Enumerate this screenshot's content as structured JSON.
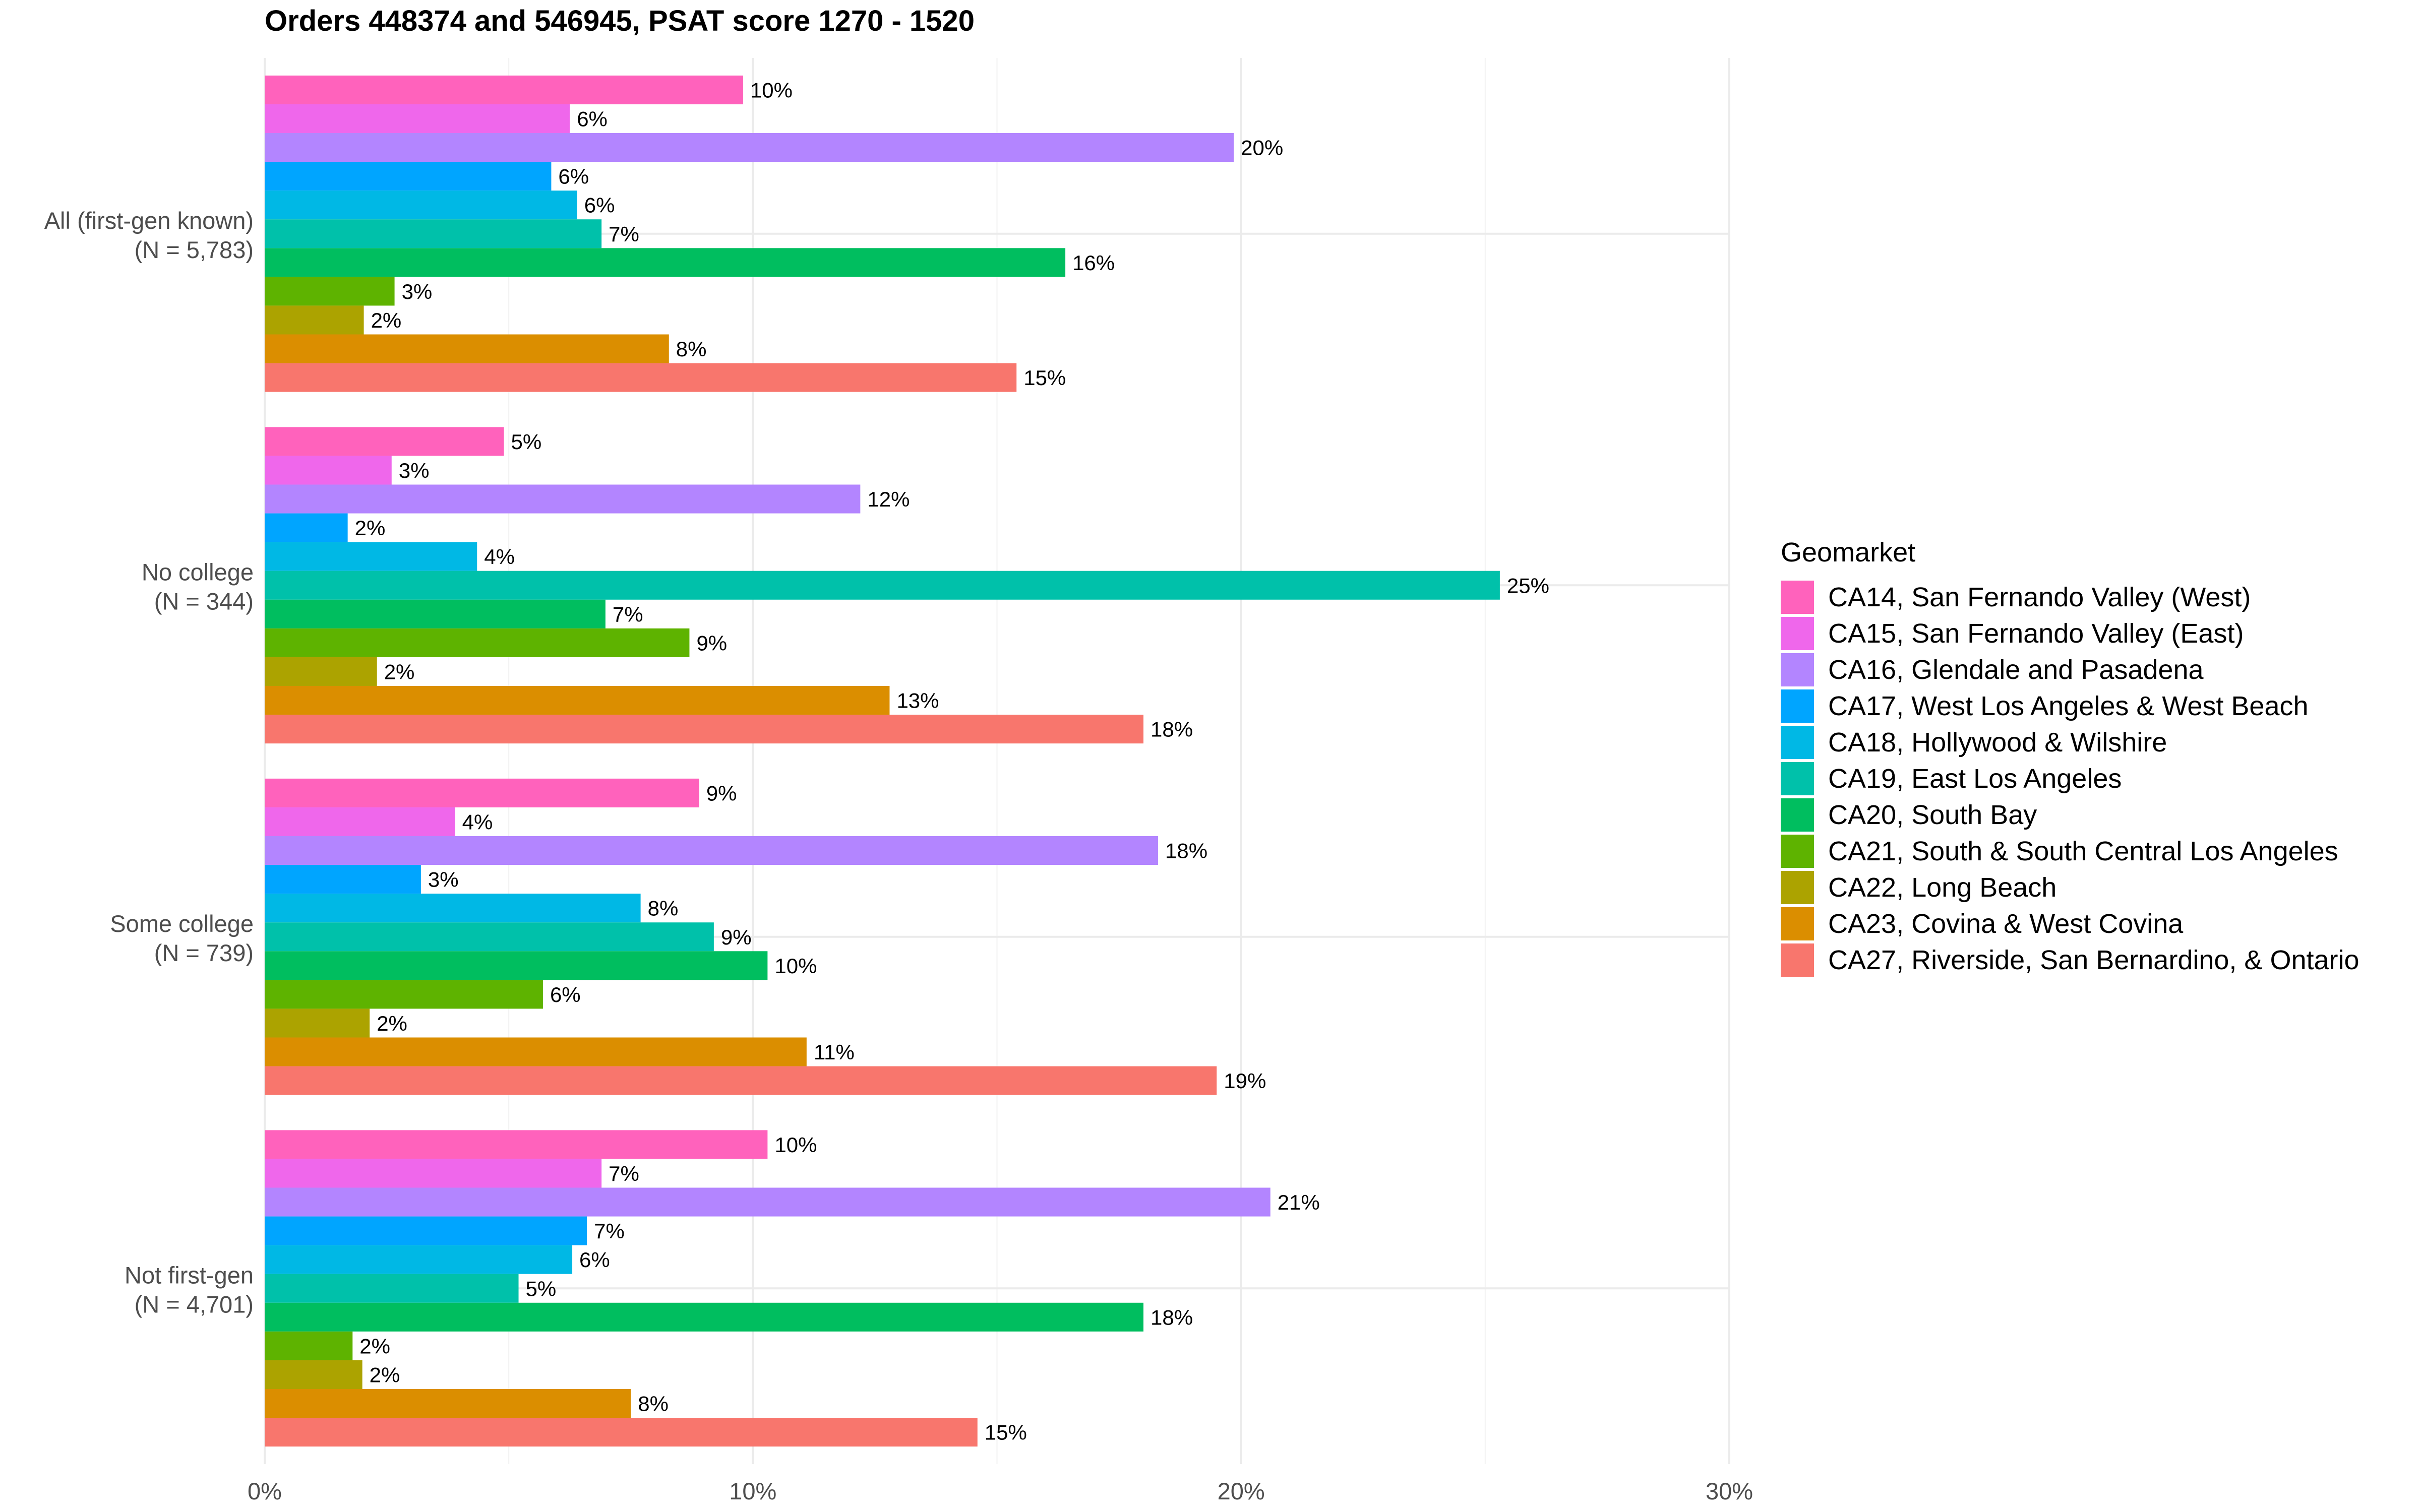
{
  "chart_data": {
    "type": "bar",
    "orientation": "horizontal",
    "title": "Orders 448374 and 546945, PSAT score 1270 - 1520",
    "xlabel": "",
    "ylabel": "",
    "xlim": [
      0,
      30
    ],
    "x_ticks": [
      "0%",
      "10%",
      "20%",
      "30%"
    ],
    "grid": true,
    "legend_title": "Geomarket",
    "legend_position": "right",
    "categories": [
      {
        "label_line1": "All (first-gen known)",
        "label_line2": "(N = 5,783)"
      },
      {
        "label_line1": "No college",
        "label_line2": "(N = 344)"
      },
      {
        "label_line1": "Some college",
        "label_line2": "(N = 739)"
      },
      {
        "label_line1": "Not first-gen",
        "label_line2": "(N = 4,701)"
      }
    ],
    "series": [
      {
        "name": "CA14, San Fernando Valley (West)",
        "color": "#FF62BC",
        "values": [
          9.8,
          4.9,
          8.9,
          10.3
        ],
        "labels": [
          "10%",
          "5%",
          "9%",
          "10%"
        ]
      },
      {
        "name": "CA15, San Fernando Valley (East)",
        "color": "#EF67EB",
        "values": [
          6.25,
          2.6,
          3.9,
          6.9
        ],
        "labels": [
          "6%",
          "3%",
          "4%",
          "7%"
        ]
      },
      {
        "name": "CA16, Glendale and Pasadena",
        "color": "#B385FF",
        "values": [
          19.85,
          12.2,
          18.3,
          20.6
        ],
        "labels": [
          "20%",
          "12%",
          "18%",
          "21%"
        ]
      },
      {
        "name": "CA17, West Los Angeles & West Beach",
        "color": "#00A5FF",
        "values": [
          5.87,
          1.7,
          3.2,
          6.6
        ],
        "labels": [
          "6%",
          "2%",
          "3%",
          "7%"
        ]
      },
      {
        "name": "CA18, Hollywood & Wilshire",
        "color": "#00B8E5",
        "values": [
          6.4,
          4.35,
          7.7,
          6.3
        ],
        "labels": [
          "6%",
          "4%",
          "8%",
          "6%"
        ]
      },
      {
        "name": "CA19, East Los Angeles",
        "color": "#00C1AA",
        "values": [
          6.9,
          25.3,
          9.2,
          5.2
        ],
        "labels": [
          "7%",
          "25%",
          "9%",
          "5%"
        ]
      },
      {
        "name": "CA20, South Bay",
        "color": "#00BE5F",
        "values": [
          16.4,
          6.98,
          10.3,
          18.0
        ],
        "labels": [
          "16%",
          "7%",
          "10%",
          "18%"
        ]
      },
      {
        "name": "CA21, South & South Central Los Angeles",
        "color": "#5EB300",
        "values": [
          2.66,
          8.7,
          5.7,
          1.8
        ],
        "labels": [
          "3%",
          "9%",
          "6%",
          "2%"
        ]
      },
      {
        "name": "CA22, Long Beach",
        "color": "#ACA300",
        "values": [
          2.03,
          2.3,
          2.15,
          2.0
        ],
        "labels": [
          "2%",
          "2%",
          "2%",
          "2%"
        ]
      },
      {
        "name": "CA23, Covina & West Covina",
        "color": "#DB8E00",
        "values": [
          8.28,
          12.8,
          11.1,
          7.5
        ],
        "labels": [
          "8%",
          "13%",
          "11%",
          "8%"
        ]
      },
      {
        "name": "CA27, Riverside, San Bernardino, & Ontario",
        "color": "#F8766D",
        "values": [
          15.4,
          18.0,
          19.5,
          14.6
        ],
        "labels": [
          "15%",
          "18%",
          "19%",
          "15%"
        ]
      }
    ]
  }
}
